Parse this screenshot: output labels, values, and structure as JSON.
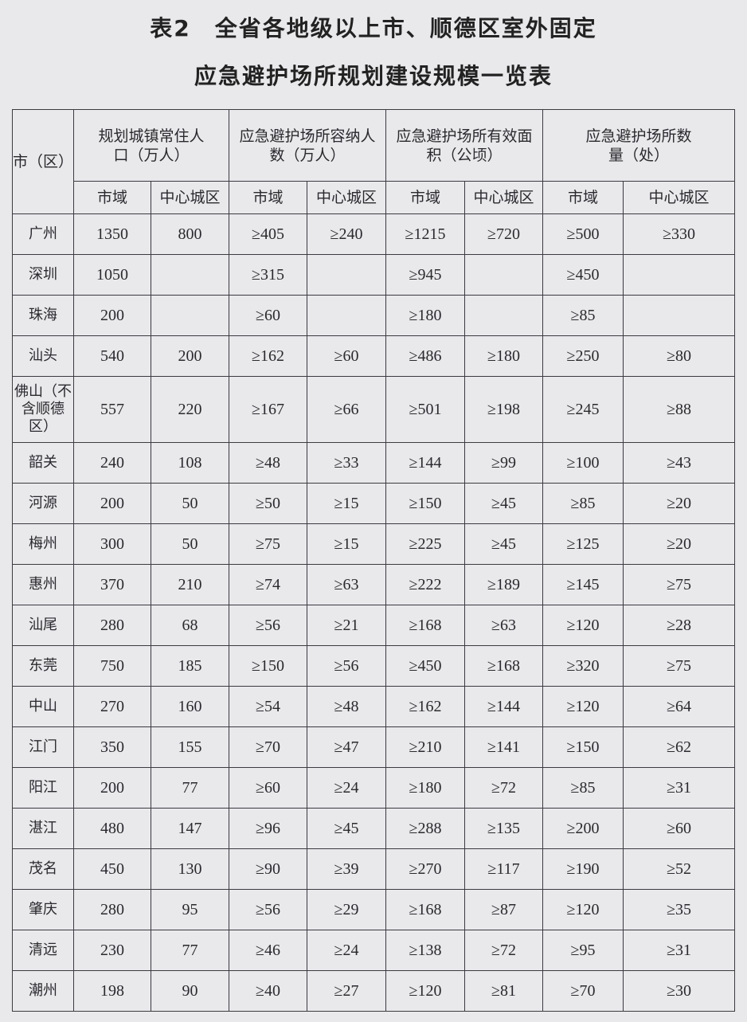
{
  "title_line1": "表2　全省各地级以上市、顺德区室外固定",
  "title_line2": "应急避护场所规划建设规模一览表",
  "headers": {
    "city": "市（区）",
    "groups": [
      "规划城镇常住人口（万人）",
      "应急避护场所容纳人数（万人）",
      "应急避护场所有效面积（公顷）",
      "应急避护场所数量（处）"
    ],
    "sub": [
      "市域",
      "中心城区",
      "市域",
      "中心城区",
      "市域",
      "中心城区",
      "市域",
      "中心城区"
    ]
  },
  "rows": [
    {
      "city": "广州",
      "v": [
        "1350",
        "800",
        "≥405",
        "≥240",
        "≥1215",
        "≥720",
        "≥500",
        "≥330"
      ]
    },
    {
      "city": "深圳",
      "v": [
        "1050",
        "",
        "≥315",
        "",
        "≥945",
        "",
        "≥450",
        ""
      ]
    },
    {
      "city": "珠海",
      "v": [
        "200",
        "",
        "≥60",
        "",
        "≥180",
        "",
        "≥85",
        ""
      ]
    },
    {
      "city": "汕头",
      "v": [
        "540",
        "200",
        "≥162",
        "≥60",
        "≥486",
        "≥180",
        "≥250",
        "≥80"
      ]
    },
    {
      "city": "佛山（不含顺德区）",
      "v": [
        "557",
        "220",
        "≥167",
        "≥66",
        "≥501",
        "≥198",
        "≥245",
        "≥88"
      ]
    },
    {
      "city": "韶关",
      "v": [
        "240",
        "108",
        "≥48",
        "≥33",
        "≥144",
        "≥99",
        "≥100",
        "≥43"
      ]
    },
    {
      "city": "河源",
      "v": [
        "200",
        "50",
        "≥50",
        "≥15",
        "≥150",
        "≥45",
        "≥85",
        "≥20"
      ]
    },
    {
      "city": "梅州",
      "v": [
        "300",
        "50",
        "≥75",
        "≥15",
        "≥225",
        "≥45",
        "≥125",
        "≥20"
      ]
    },
    {
      "city": "惠州",
      "v": [
        "370",
        "210",
        "≥74",
        "≥63",
        "≥222",
        "≥189",
        "≥145",
        "≥75"
      ]
    },
    {
      "city": "汕尾",
      "v": [
        "280",
        "68",
        "≥56",
        "≥21",
        "≥168",
        "≥63",
        "≥120",
        "≥28"
      ]
    },
    {
      "city": "东莞",
      "v": [
        "750",
        "185",
        "≥150",
        "≥56",
        "≥450",
        "≥168",
        "≥320",
        "≥75"
      ]
    },
    {
      "city": "中山",
      "v": [
        "270",
        "160",
        "≥54",
        "≥48",
        "≥162",
        "≥144",
        "≥120",
        "≥64"
      ]
    },
    {
      "city": "江门",
      "v": [
        "350",
        "155",
        "≥70",
        "≥47",
        "≥210",
        "≥141",
        "≥150",
        "≥62"
      ]
    },
    {
      "city": "阳江",
      "v": [
        "200",
        "77",
        "≥60",
        "≥24",
        "≥180",
        "≥72",
        "≥85",
        "≥31"
      ]
    },
    {
      "city": "湛江",
      "v": [
        "480",
        "147",
        "≥96",
        "≥45",
        "≥288",
        "≥135",
        "≥200",
        "≥60"
      ]
    },
    {
      "city": "茂名",
      "v": [
        "450",
        "130",
        "≥90",
        "≥39",
        "≥270",
        "≥117",
        "≥190",
        "≥52"
      ]
    },
    {
      "city": "肇庆",
      "v": [
        "280",
        "95",
        "≥56",
        "≥29",
        "≥168",
        "≥87",
        "≥120",
        "≥35"
      ]
    },
    {
      "city": "清远",
      "v": [
        "230",
        "77",
        "≥46",
        "≥24",
        "≥138",
        "≥72",
        "≥95",
        "≥31"
      ]
    },
    {
      "city": "潮州",
      "v": [
        "198",
        "90",
        "≥40",
        "≥27",
        "≥120",
        "≥81",
        "≥70",
        "≥30"
      ]
    }
  ]
}
